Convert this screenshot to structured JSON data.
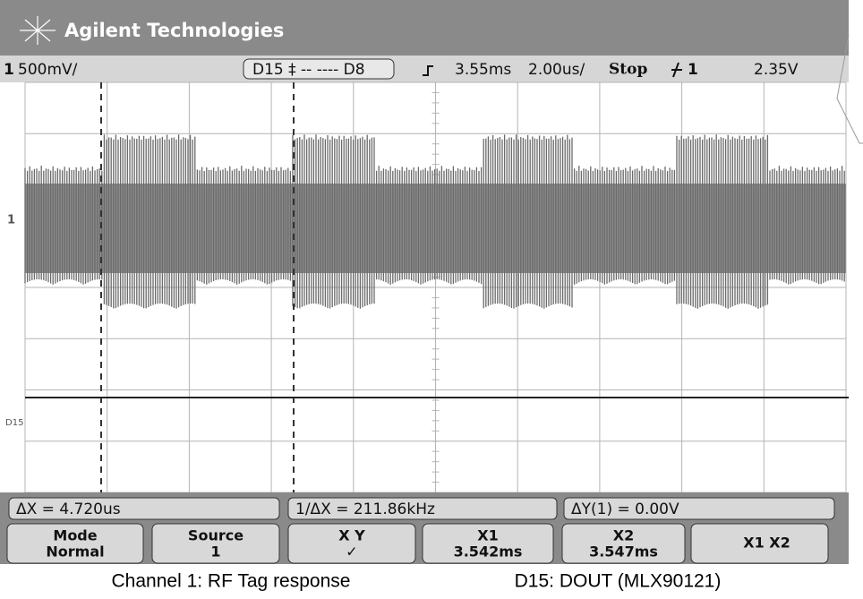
{
  "header": {
    "brand": "Agilent Technologies"
  },
  "status": {
    "channel": "1",
    "scale": "500mV/",
    "digital": "D15 ‡ -- ---- D8",
    "delay": "3.55ms",
    "timebase": "2.00us/",
    "run_state": "Stop",
    "trigger_source": "1",
    "trigger_level": "2.35V"
  },
  "markers": {
    "channel": "1",
    "digital": "D15"
  },
  "measurements": [
    "ΔX = 4.720us",
    "1/ΔX = 211.86kHz",
    "ΔY(1) = 0.00V"
  ],
  "softkeys": [
    {
      "label": "Mode",
      "value": "Normal"
    },
    {
      "label": "Source",
      "value": "1"
    },
    {
      "label": "X Y",
      "value": "✓"
    },
    {
      "label": "X1",
      "value": "3.542ms"
    },
    {
      "label": "X2",
      "value": "3.547ms"
    },
    {
      "label": "X1 X2"
    }
  ],
  "caption": [
    "Channel 1: RF Tag response",
    "D15: DOUT (MLX90121)"
  ]
}
